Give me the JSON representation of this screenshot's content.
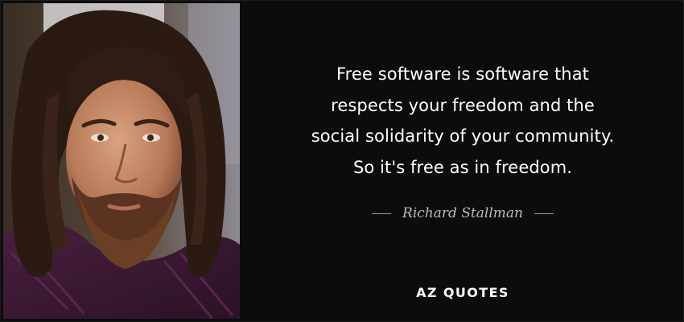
{
  "quote": {
    "lines": [
      "Free software is software that",
      "respects your freedom and the",
      "social solidarity of your community.",
      "So it's free as in freedom."
    ]
  },
  "author": {
    "name": "Richard Stallman"
  },
  "brand": {
    "logo_text": "AZ QUOTES"
  },
  "colors": {
    "background": "#0c0c0c",
    "quote_text": "#ffffff",
    "author_text": "#bdbdbd"
  }
}
